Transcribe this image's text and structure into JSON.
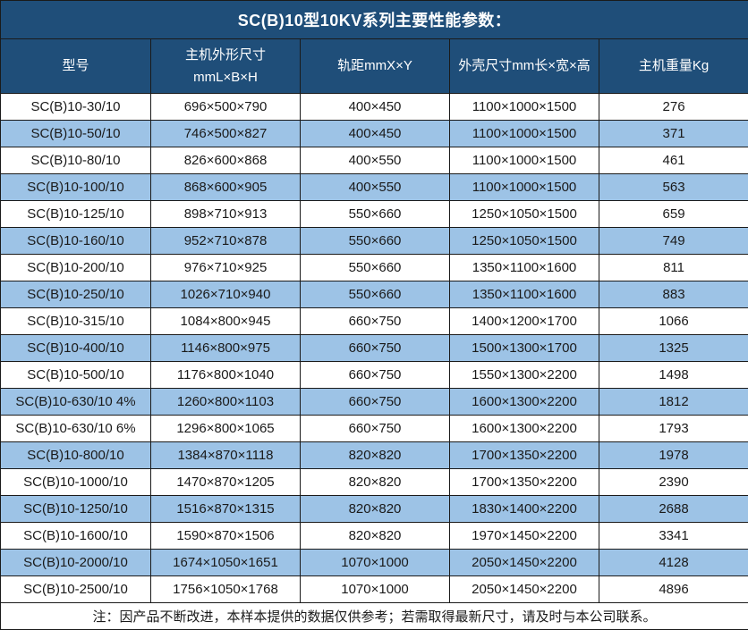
{
  "title": "SC(B)10型10KV系列主要性能参数：",
  "note": "注：因产品不断改进，本样本提供的数据仅供参考；若需取得最新尺寸，请及时与本公司联系。",
  "colors": {
    "header_bg": "#1F4E79",
    "row_alt_bg": "#9DC3E6",
    "row_bg": "#FFFFFF",
    "border": "#1A1A1A",
    "header_text": "#FFFFFF",
    "body_text": "#1A1A1A"
  },
  "table": {
    "columns": [
      [
        "型号"
      ],
      [
        "主机外形尺寸",
        "mmL×B×H"
      ],
      [
        "轨距mmX×Y"
      ],
      [
        "外壳尺寸mm长×宽×高"
      ],
      [
        "主机重量Kg"
      ]
    ],
    "rows": [
      [
        "SC(B)10-30/10",
        "696×500×790",
        "400×450",
        "1100×1000×1500",
        "276"
      ],
      [
        "SC(B)10-50/10",
        "746×500×827",
        "400×450",
        "1100×1000×1500",
        "371"
      ],
      [
        "SC(B)10-80/10",
        "826×600×868",
        "400×550",
        "1100×1000×1500",
        "461"
      ],
      [
        "SC(B)10-100/10",
        "868×600×905",
        "400×550",
        "1100×1000×1500",
        "563"
      ],
      [
        "SC(B)10-125/10",
        "898×710×913",
        "550×660",
        "1250×1050×1500",
        "659"
      ],
      [
        "SC(B)10-160/10",
        "952×710×878",
        "550×660",
        "1250×1050×1500",
        "749"
      ],
      [
        "SC(B)10-200/10",
        "976×710×925",
        "550×660",
        "1350×1100×1600",
        "811"
      ],
      [
        "SC(B)10-250/10",
        "1026×710×940",
        "550×660",
        "1350×1100×1600",
        "883"
      ],
      [
        "SC(B)10-315/10",
        "1084×800×945",
        "660×750",
        "1400×1200×1700",
        "1066"
      ],
      [
        "SC(B)10-400/10",
        "1146×800×975",
        "660×750",
        "1500×1300×1700",
        "1325"
      ],
      [
        "SC(B)10-500/10",
        "1176×800×1040",
        "660×750",
        "1550×1300×2200",
        "1498"
      ],
      [
        "SC(B)10-630/10 4%",
        "1260×800×1103",
        "660×750",
        "1600×1300×2200",
        "1812"
      ],
      [
        "SC(B)10-630/10 6%",
        "1296×800×1065",
        "660×750",
        "1600×1300×2200",
        "1793"
      ],
      [
        "SC(B)10-800/10",
        "1384×870×1118",
        "820×820",
        "1700×1350×2200",
        "1978"
      ],
      [
        "SC(B)10-1000/10",
        "1470×870×1205",
        "820×820",
        "1700×1350×2200",
        "2390"
      ],
      [
        "SC(B)10-1250/10",
        "1516×870×1315",
        "820×820",
        "1830×1400×2200",
        "2688"
      ],
      [
        "SC(B)10-1600/10",
        "1590×870×1506",
        "820×820",
        "1970×1450×2200",
        "3341"
      ],
      [
        "SC(B)10-2000/10",
        "1674×1050×1651",
        "1070×1000",
        "2050×1450×2200",
        "4128"
      ],
      [
        "SC(B)10-2500/10",
        "1756×1050×1768",
        "1070×1000",
        "2050×1450×2200",
        "4896"
      ]
    ]
  },
  "chart_data": {
    "type": "table",
    "title": "SC(B)10型10KV系列主要性能参数：",
    "columns": [
      "型号",
      "主机外形尺寸mmL×B×H",
      "轨距mmX×Y",
      "外壳尺寸mm长×宽×高",
      "主机重量Kg"
    ],
    "rows": [
      [
        "SC(B)10-30/10",
        "696×500×790",
        "400×450",
        "1100×1000×1500",
        276
      ],
      [
        "SC(B)10-50/10",
        "746×500×827",
        "400×450",
        "1100×1000×1500",
        371
      ],
      [
        "SC(B)10-80/10",
        "826×600×868",
        "400×550",
        "1100×1000×1500",
        461
      ],
      [
        "SC(B)10-100/10",
        "868×600×905",
        "400×550",
        "1100×1000×1500",
        563
      ],
      [
        "SC(B)10-125/10",
        "898×710×913",
        "550×660",
        "1250×1050×1500",
        659
      ],
      [
        "SC(B)10-160/10",
        "952×710×878",
        "550×660",
        "1250×1050×1500",
        749
      ],
      [
        "SC(B)10-200/10",
        "976×710×925",
        "550×660",
        "1350×1100×1600",
        811
      ],
      [
        "SC(B)10-250/10",
        "1026×710×940",
        "550×660",
        "1350×1100×1600",
        883
      ],
      [
        "SC(B)10-315/10",
        "1084×800×945",
        "660×750",
        "1400×1200×1700",
        1066
      ],
      [
        "SC(B)10-400/10",
        "1146×800×975",
        "660×750",
        "1500×1300×1700",
        1325
      ],
      [
        "SC(B)10-500/10",
        "1176×800×1040",
        "660×750",
        "1550×1300×2200",
        1498
      ],
      [
        "SC(B)10-630/10 4%",
        "1260×800×1103",
        "660×750",
        "1600×1300×2200",
        1812
      ],
      [
        "SC(B)10-630/10 6%",
        "1296×800×1065",
        "660×750",
        "1600×1300×2200",
        1793
      ],
      [
        "SC(B)10-800/10",
        "1384×870×1118",
        "820×820",
        "1700×1350×2200",
        1978
      ],
      [
        "SC(B)10-1000/10",
        "1470×870×1205",
        "820×820",
        "1700×1350×2200",
        2390
      ],
      [
        "SC(B)10-1250/10",
        "1516×870×1315",
        "820×820",
        "1830×1400×2200",
        2688
      ],
      [
        "SC(B)10-1600/10",
        "1590×870×1506",
        "820×820",
        "1970×1450×2200",
        3341
      ],
      [
        "SC(B)10-2000/10",
        "1674×1050×1651",
        "1070×1000",
        "2050×1450×2200",
        4128
      ],
      [
        "SC(B)10-2500/10",
        "1756×1050×1768",
        "1070×1000",
        "2050×1450×2200",
        4896
      ]
    ]
  }
}
